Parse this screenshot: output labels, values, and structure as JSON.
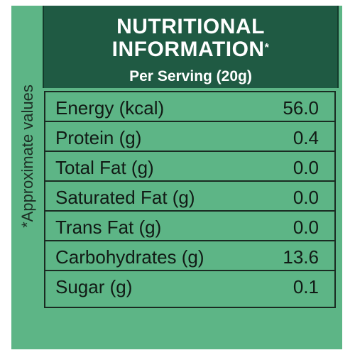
{
  "header": {
    "title_line1": "NUTRITIONAL",
    "title_line2": "INFORMATION",
    "title_mark": "*",
    "subtitle": "Per Serving (20g)"
  },
  "side_note": "*Approximate values",
  "nutrients": [
    {
      "label": "Energy (kcal)",
      "value": "56.0"
    },
    {
      "label": "Protein (g)",
      "value": "0.4"
    },
    {
      "label": "Total Fat (g)",
      "value": "0.0"
    },
    {
      "label": "Saturated Fat (g)",
      "value": "0.0"
    },
    {
      "label": "Trans Fat (g)",
      "value": "0.0"
    },
    {
      "label": "Carbohydrates (g)",
      "value": "13.6"
    },
    {
      "label": "Sugar (g)",
      "value": "0.1"
    }
  ],
  "colors": {
    "panel": "#5db586",
    "header": "#1f5a43",
    "text_dark": "#111a15"
  }
}
